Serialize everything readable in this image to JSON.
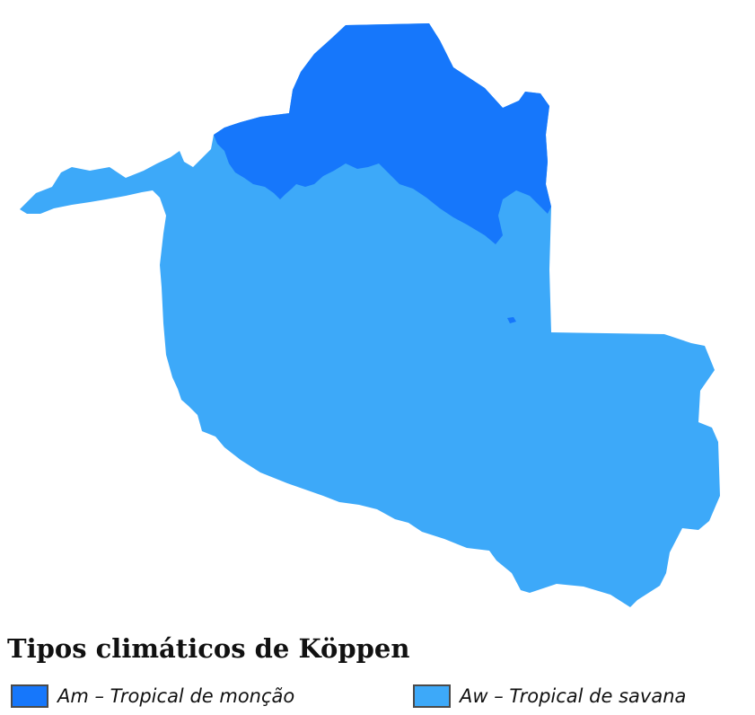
{
  "map": {
    "region_colors": {
      "am": "#1677FB",
      "aw": "#3DA9F9"
    }
  },
  "legend": {
    "title": "Tipos climáticos de Köppen",
    "items": [
      {
        "code": "Am",
        "label": "Am – Tropical de monção",
        "color": "#1677FB"
      },
      {
        "code": "Aw",
        "label": "Aw – Tropical de savana",
        "color": "#3DA9F9"
      }
    ]
  }
}
